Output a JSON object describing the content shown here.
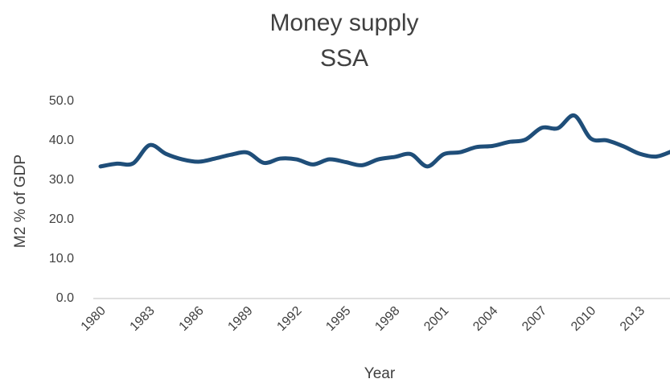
{
  "chart_data": {
    "type": "line",
    "title": "Money supply",
    "subtitle": "SSA",
    "y_label": "M2 % of GDP",
    "x_label": "Year",
    "x": [
      1980,
      1981,
      1982,
      1983,
      1984,
      1985,
      1986,
      1987,
      1988,
      1989,
      1990,
      1991,
      1992,
      1993,
      1994,
      1995,
      1996,
      1997,
      1998,
      1999,
      2000,
      2001,
      2002,
      2003,
      2004,
      2005,
      2006,
      2007,
      2008,
      2009,
      2010,
      2011,
      2012,
      2013,
      2014,
      2015
    ],
    "series": [
      {
        "name": "SSA",
        "color": "#1f4e79",
        "values": [
          33.5,
          34.2,
          34.3,
          38.9,
          36.7,
          35.3,
          34.7,
          35.5,
          36.5,
          37.0,
          34.4,
          35.5,
          35.3,
          34.0,
          35.3,
          34.6,
          33.8,
          35.3,
          35.9,
          36.6,
          33.5,
          36.6,
          37.1,
          38.4,
          38.7,
          39.7,
          40.3,
          43.3,
          43.2,
          46.4,
          40.6,
          40.1,
          38.6,
          36.7,
          36.0,
          37.4
        ]
      }
    ],
    "xlim": [
      1980,
      2015
    ],
    "xticks": [
      1980,
      1983,
      1986,
      1989,
      1992,
      1995,
      1998,
      2001,
      2004,
      2007,
      2010,
      2013
    ],
    "ylim": [
      0,
      50
    ],
    "yticks": [
      {
        "value": 0,
        "label": "0.0"
      },
      {
        "value": 10,
        "label": "10.0"
      },
      {
        "value": 20,
        "label": "20.0"
      },
      {
        "value": 30,
        "label": "30.0"
      },
      {
        "value": 40,
        "label": "40.0"
      },
      {
        "value": 50,
        "label": "50.0"
      }
    ],
    "grid": false
  }
}
